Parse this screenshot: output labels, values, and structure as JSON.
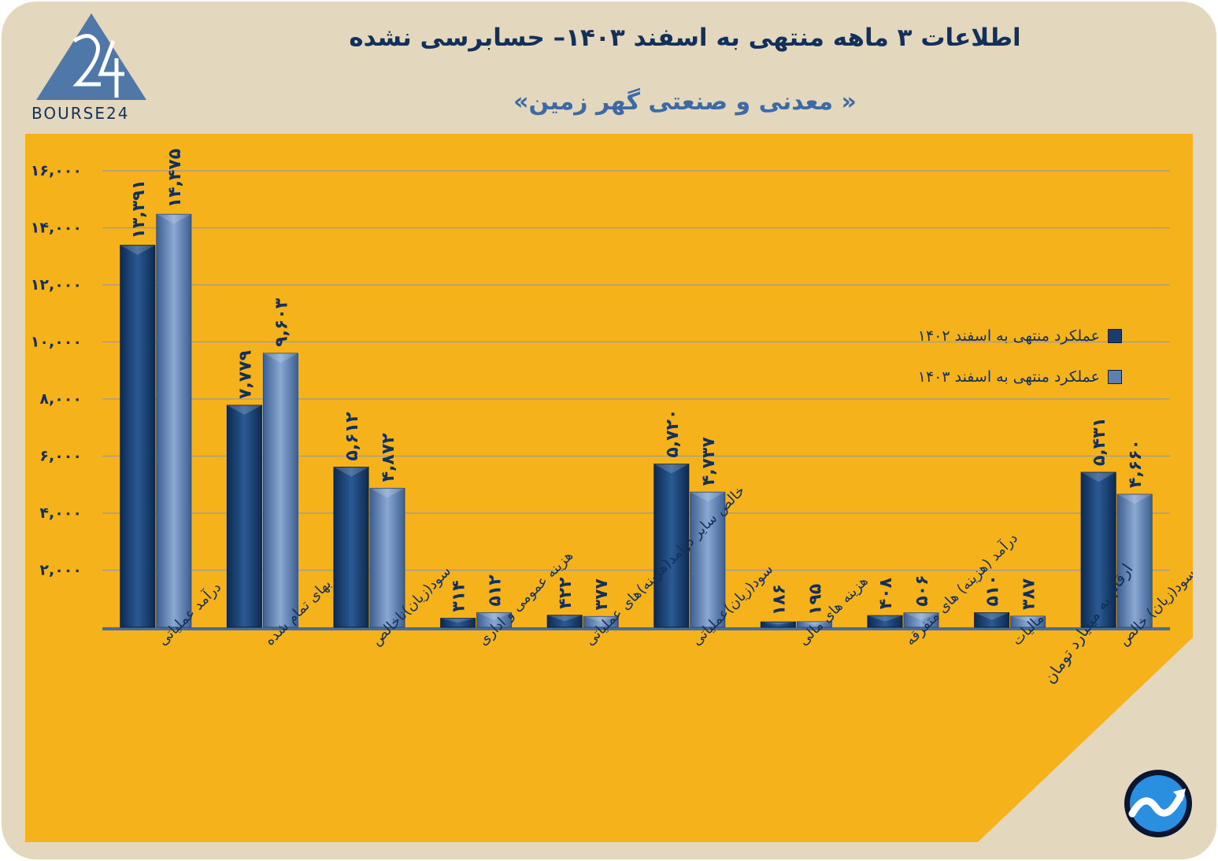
{
  "title": "اطلاعات ۳ ماهه منتهی به اسفند ۱۴۰۳– حسابرسی نشده",
  "subtitle": "« معدنی و صنعتی گهر زمین»",
  "logo": {
    "text": "BOURSE24",
    "mark_icon": "triangle-24-logo-icon"
  },
  "unit_note": "ارقام به میلیارد تومان",
  "corner_icon": "trend-arrow-icon",
  "colors": {
    "background": "#e3d8bd",
    "panel": "#f6b21b",
    "series_1402": "#1a3d6e",
    "series_1403": "#5d7fb0",
    "text": "#12305a"
  },
  "chart_data": {
    "type": "bar",
    "categories": [
      "درآمد عملیاتی",
      "بهای تمام شده",
      "سود(زیان)ناخالص",
      "هزینه عمومی و اداری",
      "خالص سایر درامد(هزینه)های عملیاتی",
      "سود(زیان)عملیاتی",
      "هزینه های مالی",
      "درآمد (هزینه) های متفرقه",
      "مالیات",
      "سود(زیان) خالص"
    ],
    "series": [
      {
        "name": "عملکرد منتهی به اسفند ۱۴۰۲",
        "values": [
          13391,
          7779,
          5612,
          314,
          422,
          5720,
          186,
          408,
          510,
          5431
        ],
        "labels": [
          "۱۳,۳۹۱",
          "۷,۷۷۹",
          "۵,۶۱۲",
          "۳۱۴",
          "۴۲۲",
          "۵,۷۲۰",
          "۱۸۶",
          "۴۰۸",
          "۵۱۰",
          "۵,۴۳۱"
        ]
      },
      {
        "name": "عملکرد منتهی به اسفند ۱۴۰۳",
        "values": [
          14475,
          9603,
          4872,
          512,
          377,
          4737,
          195,
          506,
          387,
          4660
        ],
        "labels": [
          "۱۴,۴۷۵",
          "۹,۶۰۳",
          "۴,۸۷۲",
          "۵۱۲",
          "۳۷۷",
          "۴,۷۳۷",
          "۱۹۵",
          "۵۰۶",
          "۳۸۷",
          "۴,۶۶۰"
        ]
      }
    ],
    "y_ticks": [
      2000,
      4000,
      6000,
      8000,
      10000,
      12000,
      14000,
      16000
    ],
    "y_tick_labels": [
      "۲,۰۰۰",
      "۴,۰۰۰",
      "۶,۰۰۰",
      "۸,۰۰۰",
      "۱۰,۰۰۰",
      "۱۲,۰۰۰",
      "۱۴,۰۰۰",
      "۱۶,۰۰۰"
    ],
    "ylim": [
      0,
      16000
    ],
    "grid": true,
    "legend_position": "top-right"
  }
}
